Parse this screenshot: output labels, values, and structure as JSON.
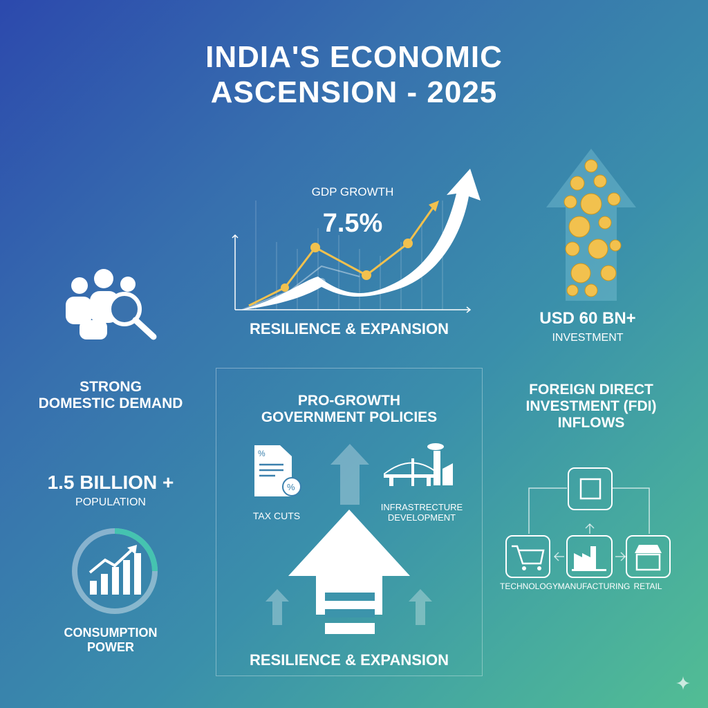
{
  "title": {
    "line1": "INDIA'S ECONOMIC",
    "line2": "ASCENSION - 2025"
  },
  "gdp": {
    "label": "GDP GROWTH",
    "value": "7.5%",
    "caption": "RESILIENCE & EXPANSION"
  },
  "investment": {
    "value": "USD 60 BN+",
    "label": "INVESTMENT"
  },
  "demand": {
    "line1": "STRONG",
    "line2": "DOMESTIC DEMAND",
    "population_value": "1.5 BILLION +",
    "population_label": "POPULATION",
    "consumption_line1": "CONSUMPTION",
    "consumption_line2": "POWER"
  },
  "policies": {
    "line1": "PRO-GROWTH",
    "line2": "GOVERNMENT POLICIES",
    "tax": "TAX CUTS",
    "infra_line1": "INFRASTRECTURE",
    "infra_line2": "DEVELOPMENT",
    "caption": "RESILIENCE & EXPANSION"
  },
  "fdi": {
    "line1": "FOREIGN DIRECT",
    "line2": "INVESTMENT (FDI)",
    "line3": "INFLOWS",
    "sectors": [
      "TECHNOLOGY",
      "MANUFACTURING",
      "RETAIL"
    ]
  },
  "colors": {
    "accent": "#f2c14e",
    "bg_start": "#2c49ad",
    "bg_end": "#52bd94"
  }
}
